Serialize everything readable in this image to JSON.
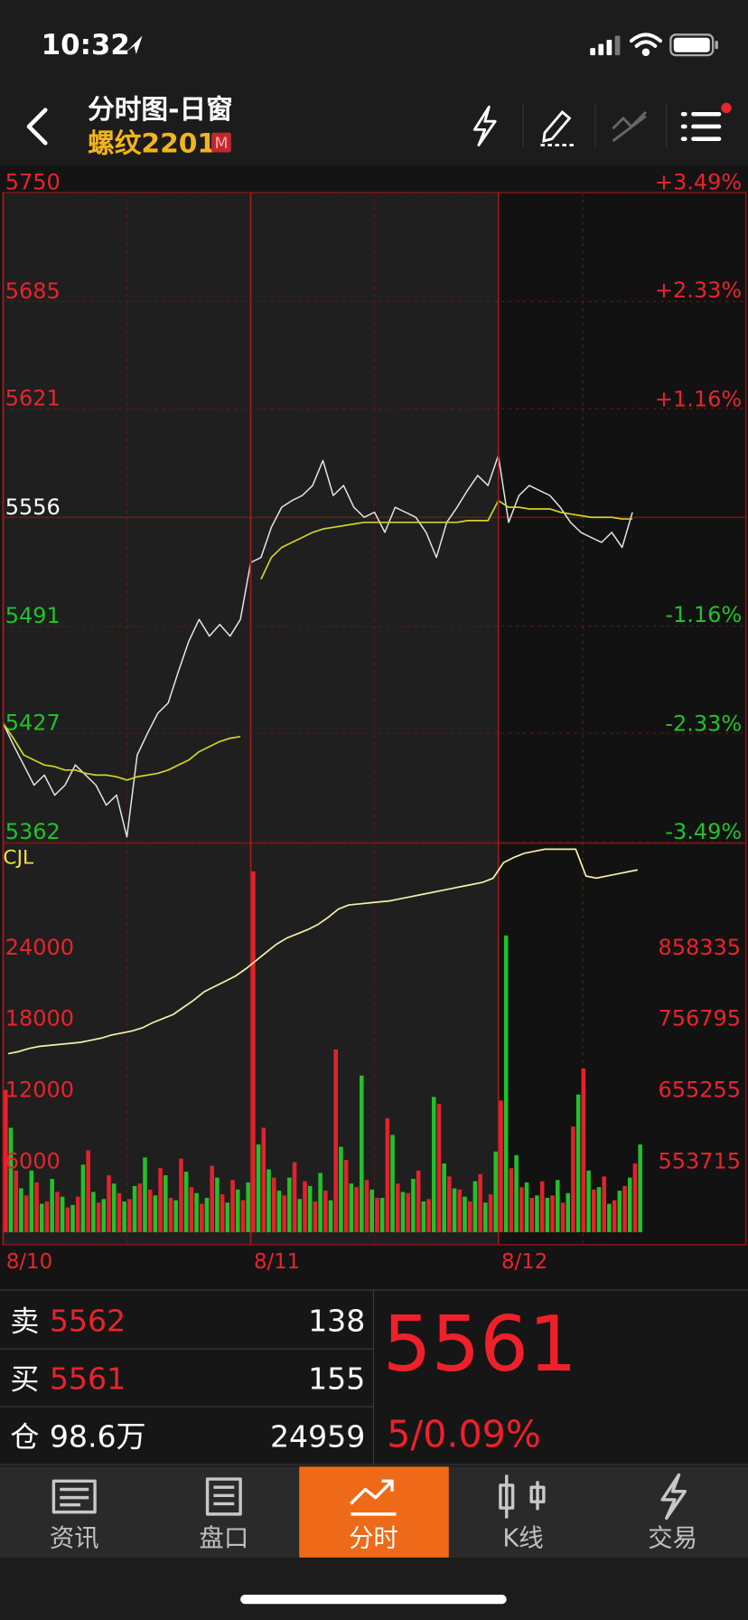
{
  "status_bar": {
    "time": "10:32"
  },
  "header": {
    "title": "分时图-日窗",
    "symbol": "螺纹2201",
    "badge": "M"
  },
  "chart_data": [
    {
      "type": "line",
      "xlim": [
        0,
        72
      ],
      "ylim": [
        5362,
        5750
      ],
      "yticks": [
        5362,
        5427,
        5491,
        5556,
        5621,
        5685,
        5750
      ],
      "y2lim": [
        -3.49,
        3.49
      ],
      "y2ticks": [
        {
          "value": -3.49,
          "label": "-3.49%"
        },
        {
          "value": -2.33,
          "label": "-2.33%"
        },
        {
          "value": -1.16,
          "label": "-1.16%"
        },
        {
          "value": 1.16,
          "label": "+1.16%"
        },
        {
          "value": 2.33,
          "label": "+2.33%"
        },
        {
          "value": 3.49,
          "label": "+3.49%"
        }
      ],
      "series": [
        {
          "color": "#e6e6e6",
          "values": [
            5433,
            5420,
            5408,
            5396,
            5402,
            5390,
            5396,
            5408,
            5402,
            5396,
            5384,
            5390,
            5365,
            5414,
            5427,
            5439,
            5445,
            5464,
            5482,
            5495,
            5485,
            5492,
            5485,
            5495,
            5529,
            5532,
            5550,
            5562,
            5566,
            5569,
            5575,
            5590,
            5569,
            5575,
            5562,
            5556,
            5559,
            5547,
            5562,
            5559,
            5556,
            5547,
            5532,
            5553,
            5562,
            5572,
            5581,
            5575,
            5593,
            5553,
            5569,
            5575,
            5572,
            5569,
            5562,
            5553,
            5547,
            5544,
            5541,
            5547,
            5538,
            5559
          ]
        },
        {
          "color": "#cfd22a",
          "values": [
            5433,
            5424,
            5414,
            5411,
            5408,
            5407,
            5405,
            5405,
            5403,
            5402,
            5402,
            5401,
            5399,
            5401,
            5402,
            5403,
            5405,
            5408,
            5411,
            5416,
            5419,
            5422,
            5424,
            5425,
            null,
            5519,
            5532,
            5538,
            5541,
            5544,
            5547,
            5549,
            5550,
            5551,
            5552,
            5553,
            5553,
            5553,
            5553,
            5553,
            5553,
            5553,
            5553,
            5553,
            5553,
            5554,
            5554,
            5554,
            5566,
            5562,
            5562,
            5561,
            5561,
            5561,
            5559,
            5558,
            5557,
            5556,
            5556,
            5556,
            5555,
            5555
          ]
        }
      ]
    },
    {
      "type": "bar",
      "title": "CJL",
      "xlim": [
        0,
        72
      ],
      "ylim": [
        0,
        32700
      ],
      "yticks": [
        6000,
        12000,
        18000,
        24000
      ],
      "y2lim": [
        452175,
        1005490
      ],
      "y2ticks": [
        553715,
        655255,
        756795,
        858335
      ],
      "xticks": [
        {
          "value": 0,
          "label": "8/10"
        },
        {
          "value": 24,
          "label": "8/11"
        },
        {
          "value": 48,
          "label": "8/12"
        }
      ],
      "series": [
        {
          "color": "#e3222c",
          "values": [
            12000,
            5200,
            3100,
            4200,
            2600,
            3400,
            2100,
            3000,
            6900,
            2500,
            4800,
            3300,
            2800,
            4100,
            3600,
            5400,
            2900,
            6200,
            3800,
            2400,
            5600,
            3200,
            4400,
            2700,
            30400,
            8800,
            4600,
            3100,
            5900,
            4300,
            2600,
            3500,
            15400,
            6100,
            3800,
            4400,
            2900,
            9600,
            4100,
            3300,
            5200,
            2800,
            10800,
            4700,
            3600,
            2600,
            4900,
            3200,
            11100,
            5400,
            3800,
            2900,
            4300,
            3100,
            2500,
            8900,
            13800,
            3600,
            4700,
            2700,
            3900,
            5800
          ]
        },
        {
          "color": "#22c12a",
          "values": [
            8800,
            3700,
            5200,
            2400,
            4500,
            3000,
            2300,
            5700,
            3400,
            2800,
            4100,
            2600,
            3900,
            6300,
            3100,
            4800,
            2700,
            5100,
            3300,
            2900,
            4600,
            2500,
            3600,
            4200,
            7400,
            5300,
            3500,
            4600,
            2800,
            3900,
            5000,
            2700,
            7200,
            4100,
            13200,
            3600,
            2900,
            8200,
            3400,
            4500,
            2600,
            11400,
            5800,
            3700,
            3000,
            4300,
            2500,
            6800,
            25000,
            6500,
            4200,
            3100,
            2900,
            4400,
            3300,
            11600,
            5200,
            3800,
            2400,
            3500,
            4600,
            7400
          ]
        },
        {
          "color": "#f4f0a8",
          "axis": "y2",
          "values": [
            706800,
            709700,
            714100,
            717100,
            718500,
            720000,
            721500,
            723000,
            725900,
            728800,
            733300,
            736200,
            739100,
            743600,
            750900,
            756800,
            762700,
            773000,
            783300,
            795100,
            802400,
            809800,
            817100,
            827400,
            839200,
            851000,
            862800,
            871600,
            877500,
            883400,
            890700,
            901000,
            912800,
            918700,
            920100,
            921600,
            923100,
            924500,
            927500,
            930400,
            933400,
            936300,
            939300,
            942200,
            945100,
            948100,
            951100,
            956900,
            979000,
            986400,
            992300,
            995200,
            998100,
            998100,
            998100,
            998100,
            959900,
            956900,
            959900,
            962800,
            965800,
            968700
          ]
        }
      ]
    }
  ],
  "quote": {
    "rows": [
      {
        "label": "卖",
        "price": 5562,
        "volume": 138
      },
      {
        "label": "买",
        "price": 5561,
        "volume": 155
      },
      {
        "label": "仓",
        "price": "98.6万",
        "volume": 24959
      }
    ],
    "last": 5561,
    "change": "5/0.09%"
  },
  "tabs": {
    "items": [
      "资讯",
      "盘口",
      "分时",
      "K线",
      "交易"
    ],
    "active": 2
  }
}
